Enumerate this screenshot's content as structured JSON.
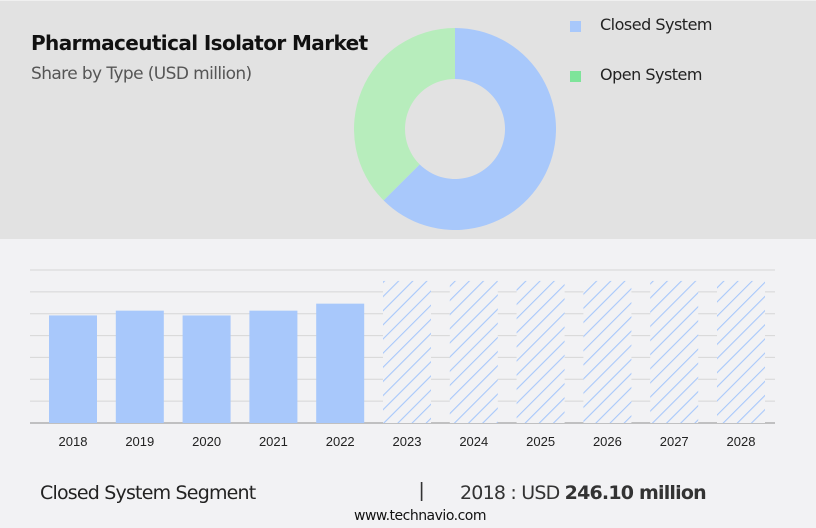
{
  "header": {
    "title": "Pharmaceutical Isolator Market",
    "subtitle": "Share by Type (USD million)"
  },
  "legend": [
    {
      "label": "Closed System",
      "color": "#a8c8fb"
    },
    {
      "label": "Open System",
      "color": "#7ee49a"
    }
  ],
  "footer": {
    "segment": "Closed System Segment",
    "separator": "|",
    "value_prefix": "2018 : USD ",
    "value_bold": "246.10 million",
    "url": "www.technavio.com"
  },
  "colors": {
    "closed": "#a8c8fb",
    "open_donut": "#b7edbc",
    "open_legend": "#7ee49a",
    "forecast_hatch": "#a8c8fb",
    "gridline": "#d6d6d6",
    "axis": "#b0b0b0"
  },
  "chart_data": [
    {
      "type": "pie",
      "subtype": "donut",
      "title": "Pharmaceutical Isolator Market",
      "subtitle": "Share by Type (USD million)",
      "categories": [
        "Closed System",
        "Open System"
      ],
      "values": [
        62.5,
        37.5
      ],
      "unit": "% share (estimated from slice angles)",
      "legend_position": "right"
    },
    {
      "type": "bar",
      "series_name": "Closed System Segment",
      "categories": [
        "2018",
        "2019",
        "2020",
        "2021",
        "2022",
        "2023",
        "2024",
        "2025",
        "2026",
        "2027",
        "2028"
      ],
      "values": [
        246.1,
        257,
        246,
        257,
        273,
        null,
        null,
        null,
        null,
        null,
        null
      ],
      "forecast": [
        false,
        false,
        false,
        false,
        false,
        true,
        true,
        true,
        true,
        true,
        true
      ],
      "forecast_display_height": 325,
      "xlabel": "",
      "ylabel": "USD million",
      "ylim": [
        0,
        350
      ],
      "y_ticks_shown": false,
      "grid": true,
      "annotation": "2018 : USD 246.10 million"
    }
  ]
}
